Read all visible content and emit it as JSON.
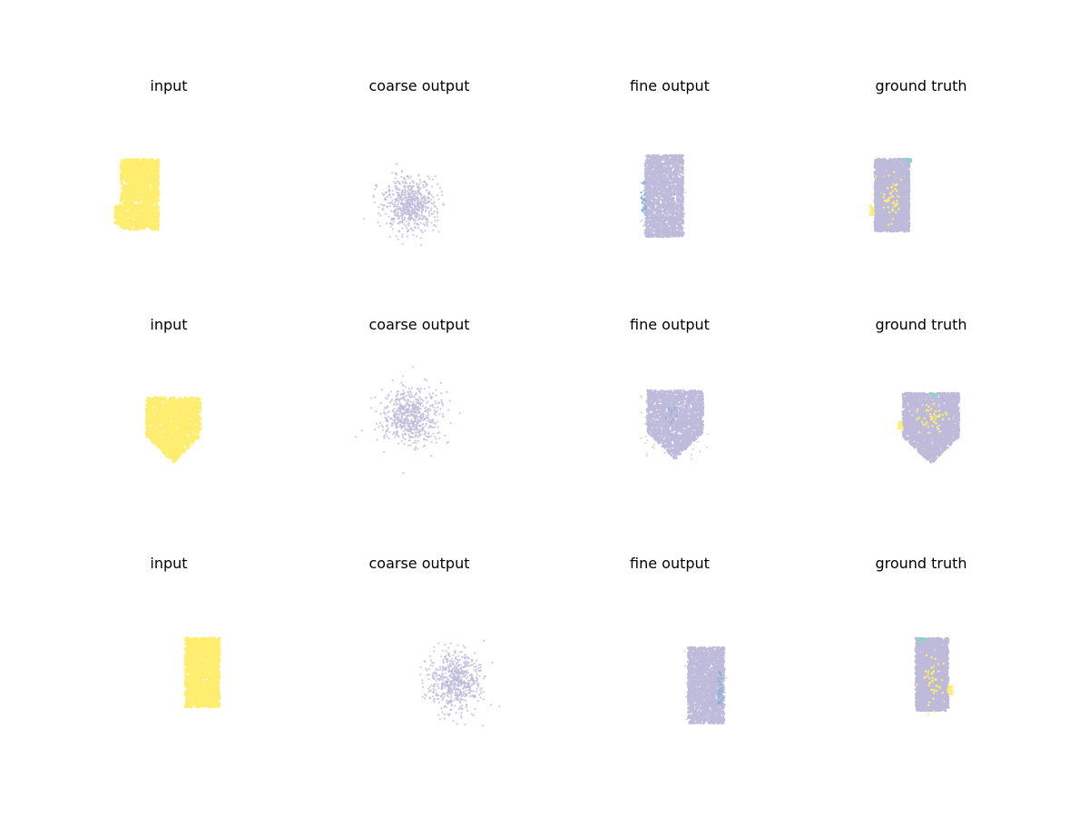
{
  "chart_data": {
    "type": "scatter",
    "layout": "3x4 grid of 3D point cloud scatter panels (axes hidden)",
    "axes_visible": false,
    "grid": false,
    "colors": {
      "input_points": "#ffed6f",
      "output_points": "#bebada",
      "segment_teal": "#8dd3c7",
      "segment_blue": "#80b1d3",
      "segment_yellow": "#ffed6f"
    },
    "rows": [
      {
        "panels": [
          {
            "title": "input",
            "cloud": "input",
            "shape": "rect-tall-notched"
          },
          {
            "title": "coarse output",
            "cloud": "coarse",
            "shape": "blob"
          },
          {
            "title": "fine output",
            "cloud": "fine",
            "shape": "rect-tall"
          },
          {
            "title": "ground truth",
            "cloud": "truth",
            "shape": "rect-tall"
          }
        ]
      },
      {
        "panels": [
          {
            "title": "input",
            "cloud": "input",
            "shape": "pentagon"
          },
          {
            "title": "coarse output",
            "cloud": "coarse",
            "shape": "blob"
          },
          {
            "title": "fine output",
            "cloud": "fine",
            "shape": "pentagon"
          },
          {
            "title": "ground truth",
            "cloud": "truth",
            "shape": "pentagon"
          }
        ]
      },
      {
        "panels": [
          {
            "title": "input",
            "cloud": "input",
            "shape": "rect-tall"
          },
          {
            "title": "coarse output",
            "cloud": "coarse",
            "shape": "blob"
          },
          {
            "title": "fine output",
            "cloud": "fine",
            "shape": "rect-tall"
          },
          {
            "title": "ground truth",
            "cloud": "truth",
            "shape": "rect-tall"
          }
        ]
      }
    ]
  }
}
